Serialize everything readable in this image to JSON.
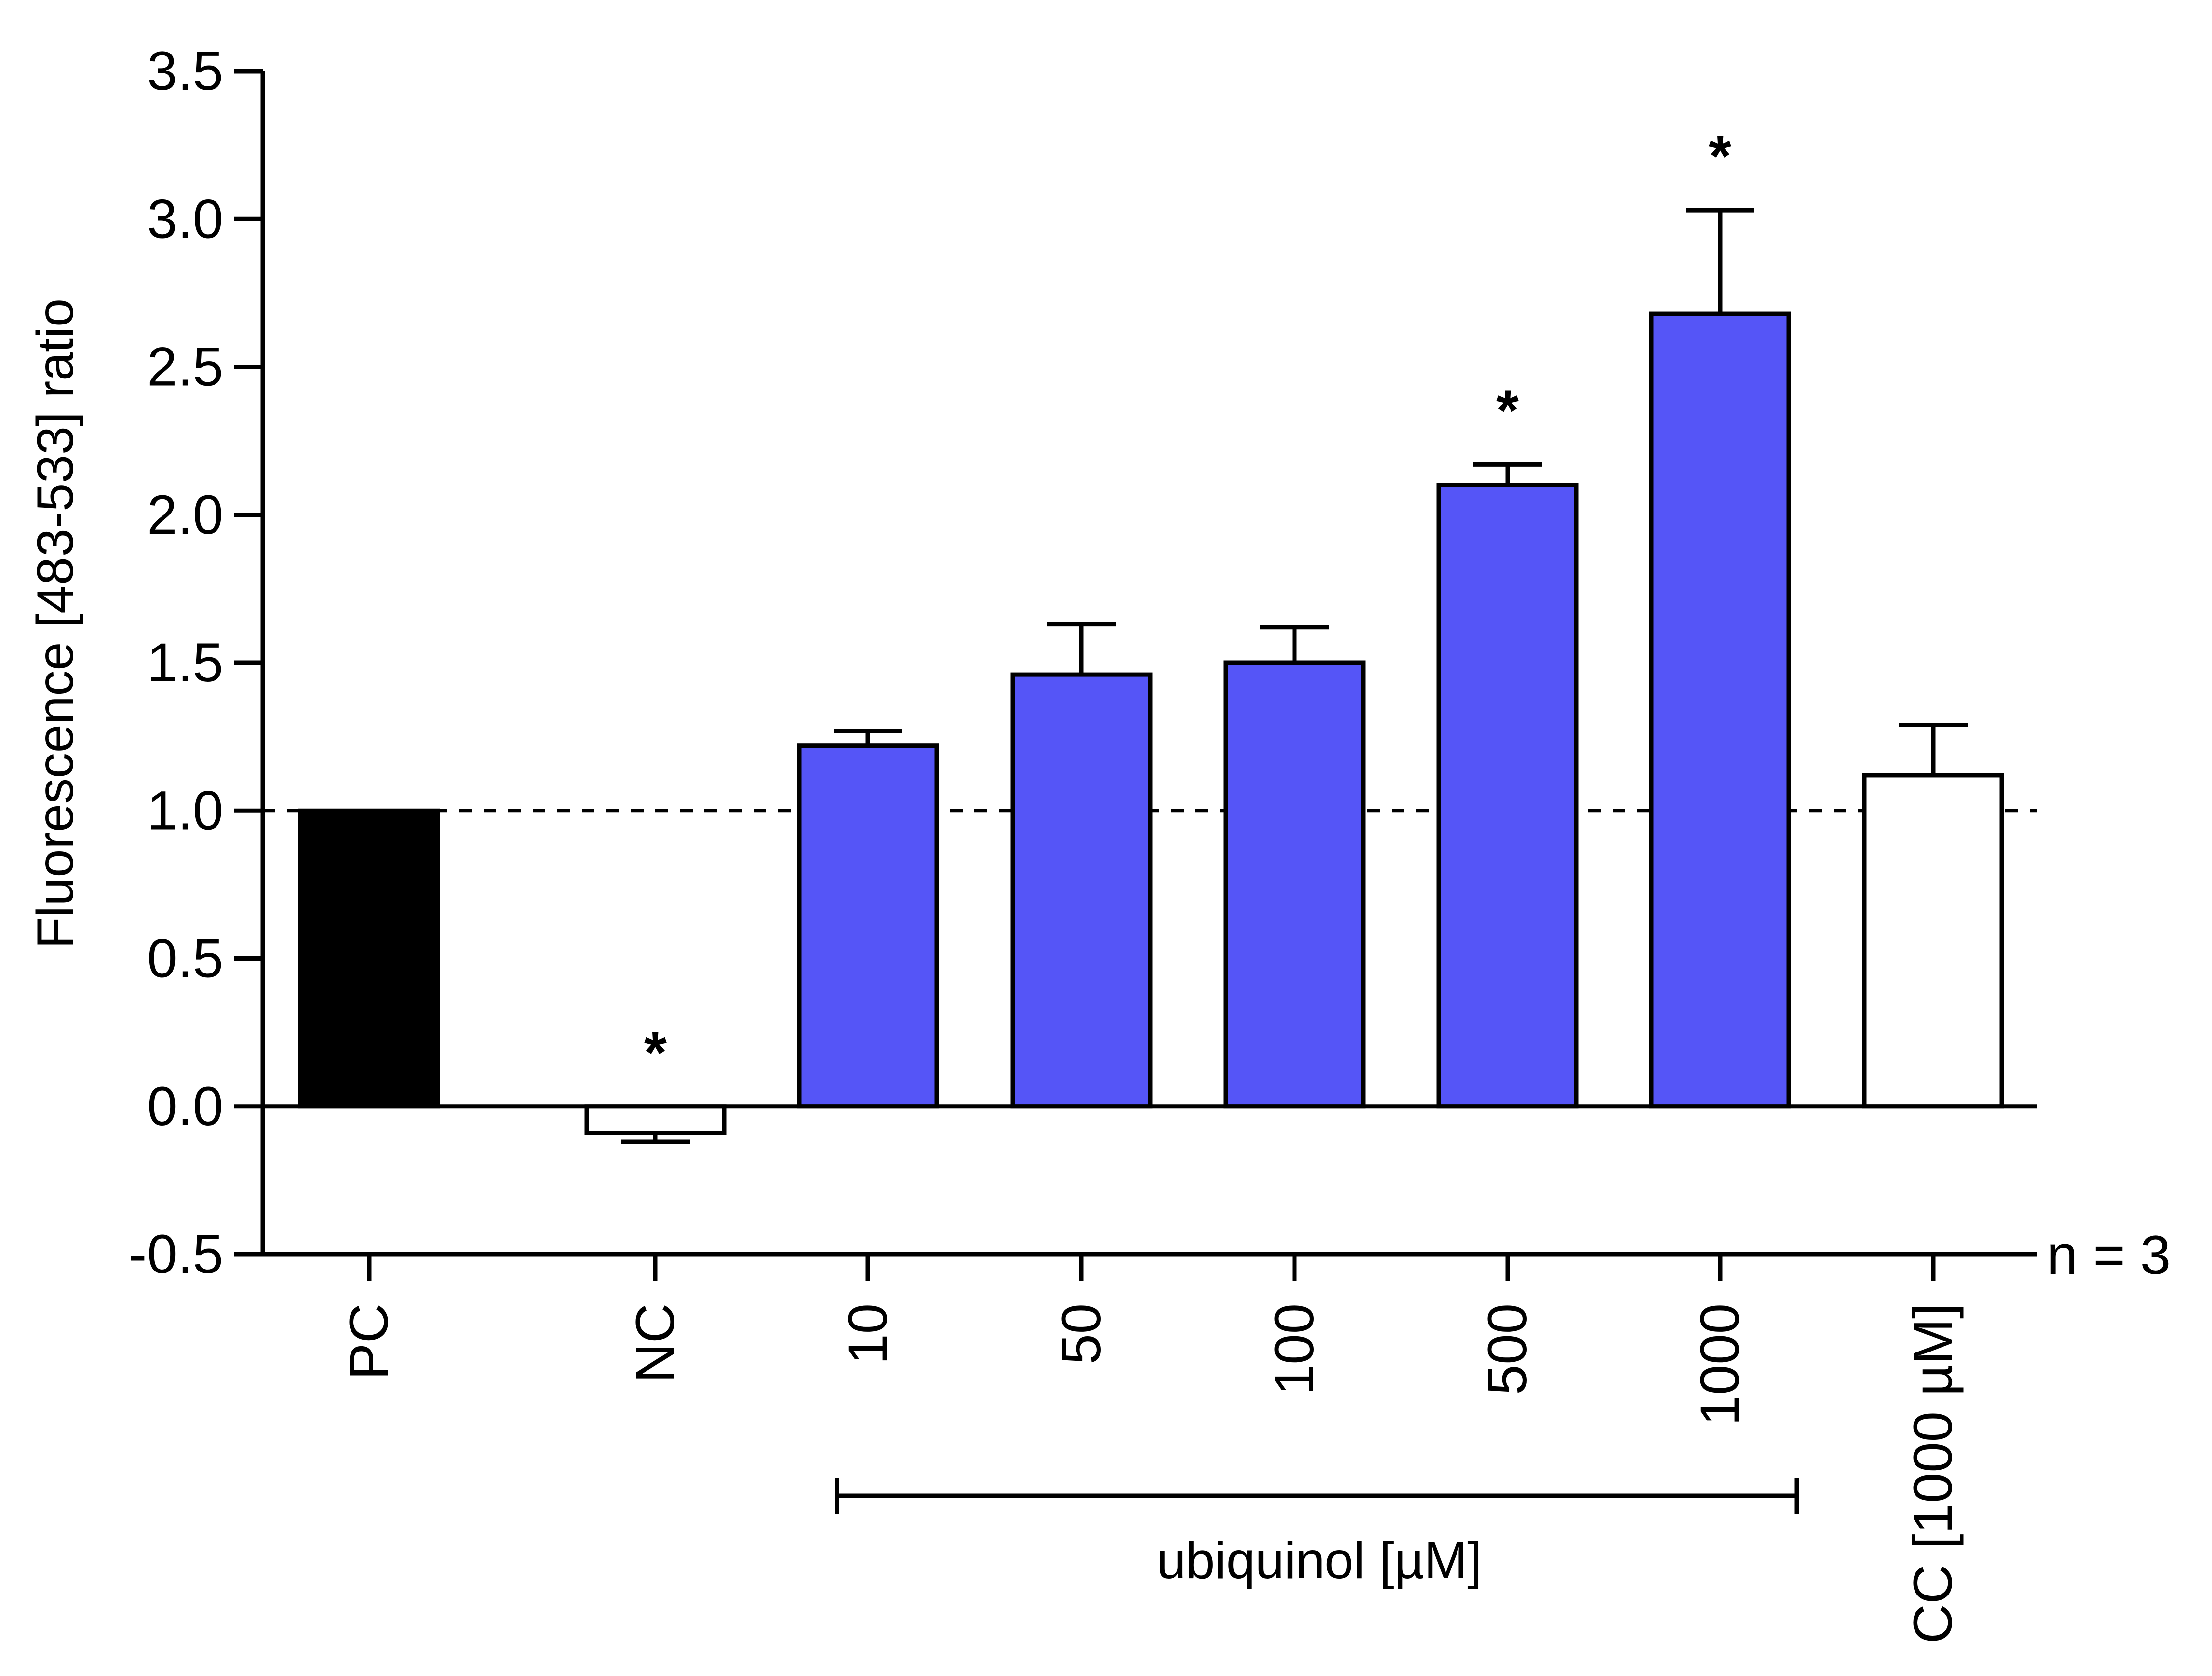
{
  "chart_data": {
    "type": "bar",
    "ylabel": "Fluorescence [483-533] ratio",
    "ylim": [
      -0.5,
      3.5
    ],
    "yticks": [
      "-0.5",
      "0.0",
      "0.5",
      "1.0",
      "1.5",
      "2.0",
      "2.5",
      "3.0",
      "3.5"
    ],
    "ytick_values": [
      -0.5,
      0.0,
      0.5,
      1.0,
      1.5,
      2.0,
      2.5,
      3.0,
      3.5
    ],
    "reference_line": 1.0,
    "n_label": "n = 3",
    "group_label": "ubiquinol [µM]",
    "categories": [
      "PC",
      "NC",
      "10",
      "50",
      "100",
      "500",
      "1000",
      "CC [1000 µM]"
    ],
    "values": [
      1.0,
      -0.09,
      1.22,
      1.46,
      1.5,
      2.1,
      2.68,
      1.12
    ],
    "errors": [
      0.0,
      0.03,
      0.05,
      0.17,
      0.12,
      0.07,
      0.35,
      0.17
    ],
    "significance": [
      "",
      "*",
      "",
      "",
      "",
      "*",
      "*",
      ""
    ],
    "bar_colors": [
      "#000000",
      "#ffffff",
      "#5555f7",
      "#5555f7",
      "#5555f7",
      "#5555f7",
      "#5555f7",
      "#ffffff"
    ],
    "edge_color": "#000000",
    "grid": false
  }
}
